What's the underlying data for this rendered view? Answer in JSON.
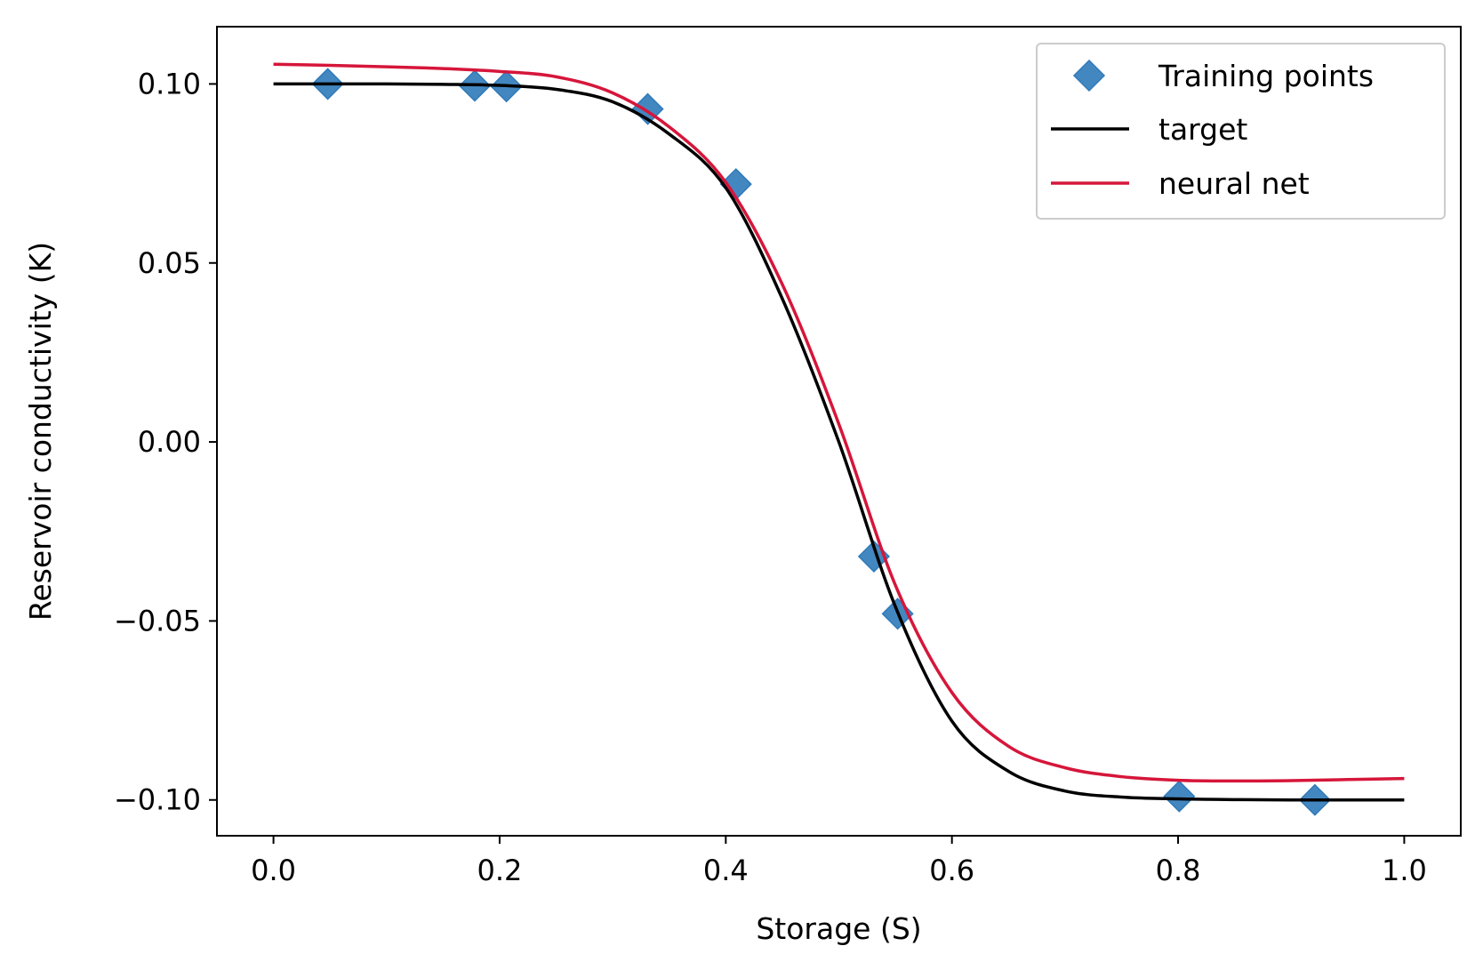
{
  "chart_data": {
    "type": "line",
    "title": "",
    "xlabel": "Storage (S)",
    "ylabel": "Reservoir conductivity (K)",
    "xlim": [
      -0.05,
      1.05
    ],
    "ylim": [
      -0.11,
      0.116
    ],
    "xticks": [
      0.0,
      0.2,
      0.4,
      0.6,
      0.8,
      1.0
    ],
    "xtick_labels": [
      "0.0",
      "0.2",
      "0.4",
      "0.6",
      "0.8",
      "1.0"
    ],
    "yticks": [
      0.1,
      0.05,
      0.0,
      -0.05,
      -0.1
    ],
    "ytick_labels": [
      "0.10",
      "0.05",
      "0.00",
      "−0.05",
      "−0.10"
    ],
    "grid": false,
    "legend_position": "top-right",
    "series": [
      {
        "name": "Training points",
        "kind": "scatter",
        "marker": "diamond",
        "color": "#2f7ab9",
        "x": [
          0.048,
          0.178,
          0.206,
          0.331,
          0.409,
          0.531,
          0.552,
          0.801,
          0.921
        ],
        "y": [
          0.1,
          0.0995,
          0.0993,
          0.093,
          0.072,
          -0.032,
          -0.048,
          -0.099,
          -0.1
        ]
      },
      {
        "name": "target",
        "kind": "line",
        "color": "#000000",
        "x": [
          0.0,
          0.05,
          0.1,
          0.15,
          0.2,
          0.25,
          0.3,
          0.35,
          0.4,
          0.45,
          0.5,
          0.55,
          0.6,
          0.65,
          0.7,
          0.75,
          0.8,
          0.85,
          0.9,
          0.95,
          1.0
        ],
        "y": [
          0.1,
          0.1,
          0.1,
          0.0999,
          0.0996,
          0.0985,
          0.095,
          0.086,
          0.071,
          0.04,
          0.0,
          -0.046,
          -0.078,
          -0.092,
          -0.0975,
          -0.0992,
          -0.0997,
          -0.0999,
          -0.1,
          -0.1,
          -0.1
        ]
      },
      {
        "name": "neural net",
        "kind": "line",
        "color": "#d6163a",
        "x": [
          0.0,
          0.05,
          0.1,
          0.15,
          0.2,
          0.25,
          0.3,
          0.35,
          0.4,
          0.45,
          0.5,
          0.55,
          0.6,
          0.65,
          0.7,
          0.75,
          0.8,
          0.85,
          0.9,
          0.95,
          1.0
        ],
        "y": [
          0.1055,
          0.1052,
          0.1048,
          0.1043,
          0.1035,
          0.102,
          0.0975,
          0.088,
          0.0725,
          0.044,
          0.005,
          -0.04,
          -0.07,
          -0.085,
          -0.091,
          -0.0935,
          -0.0945,
          -0.0947,
          -0.0946,
          -0.0943,
          -0.094
        ]
      }
    ]
  }
}
